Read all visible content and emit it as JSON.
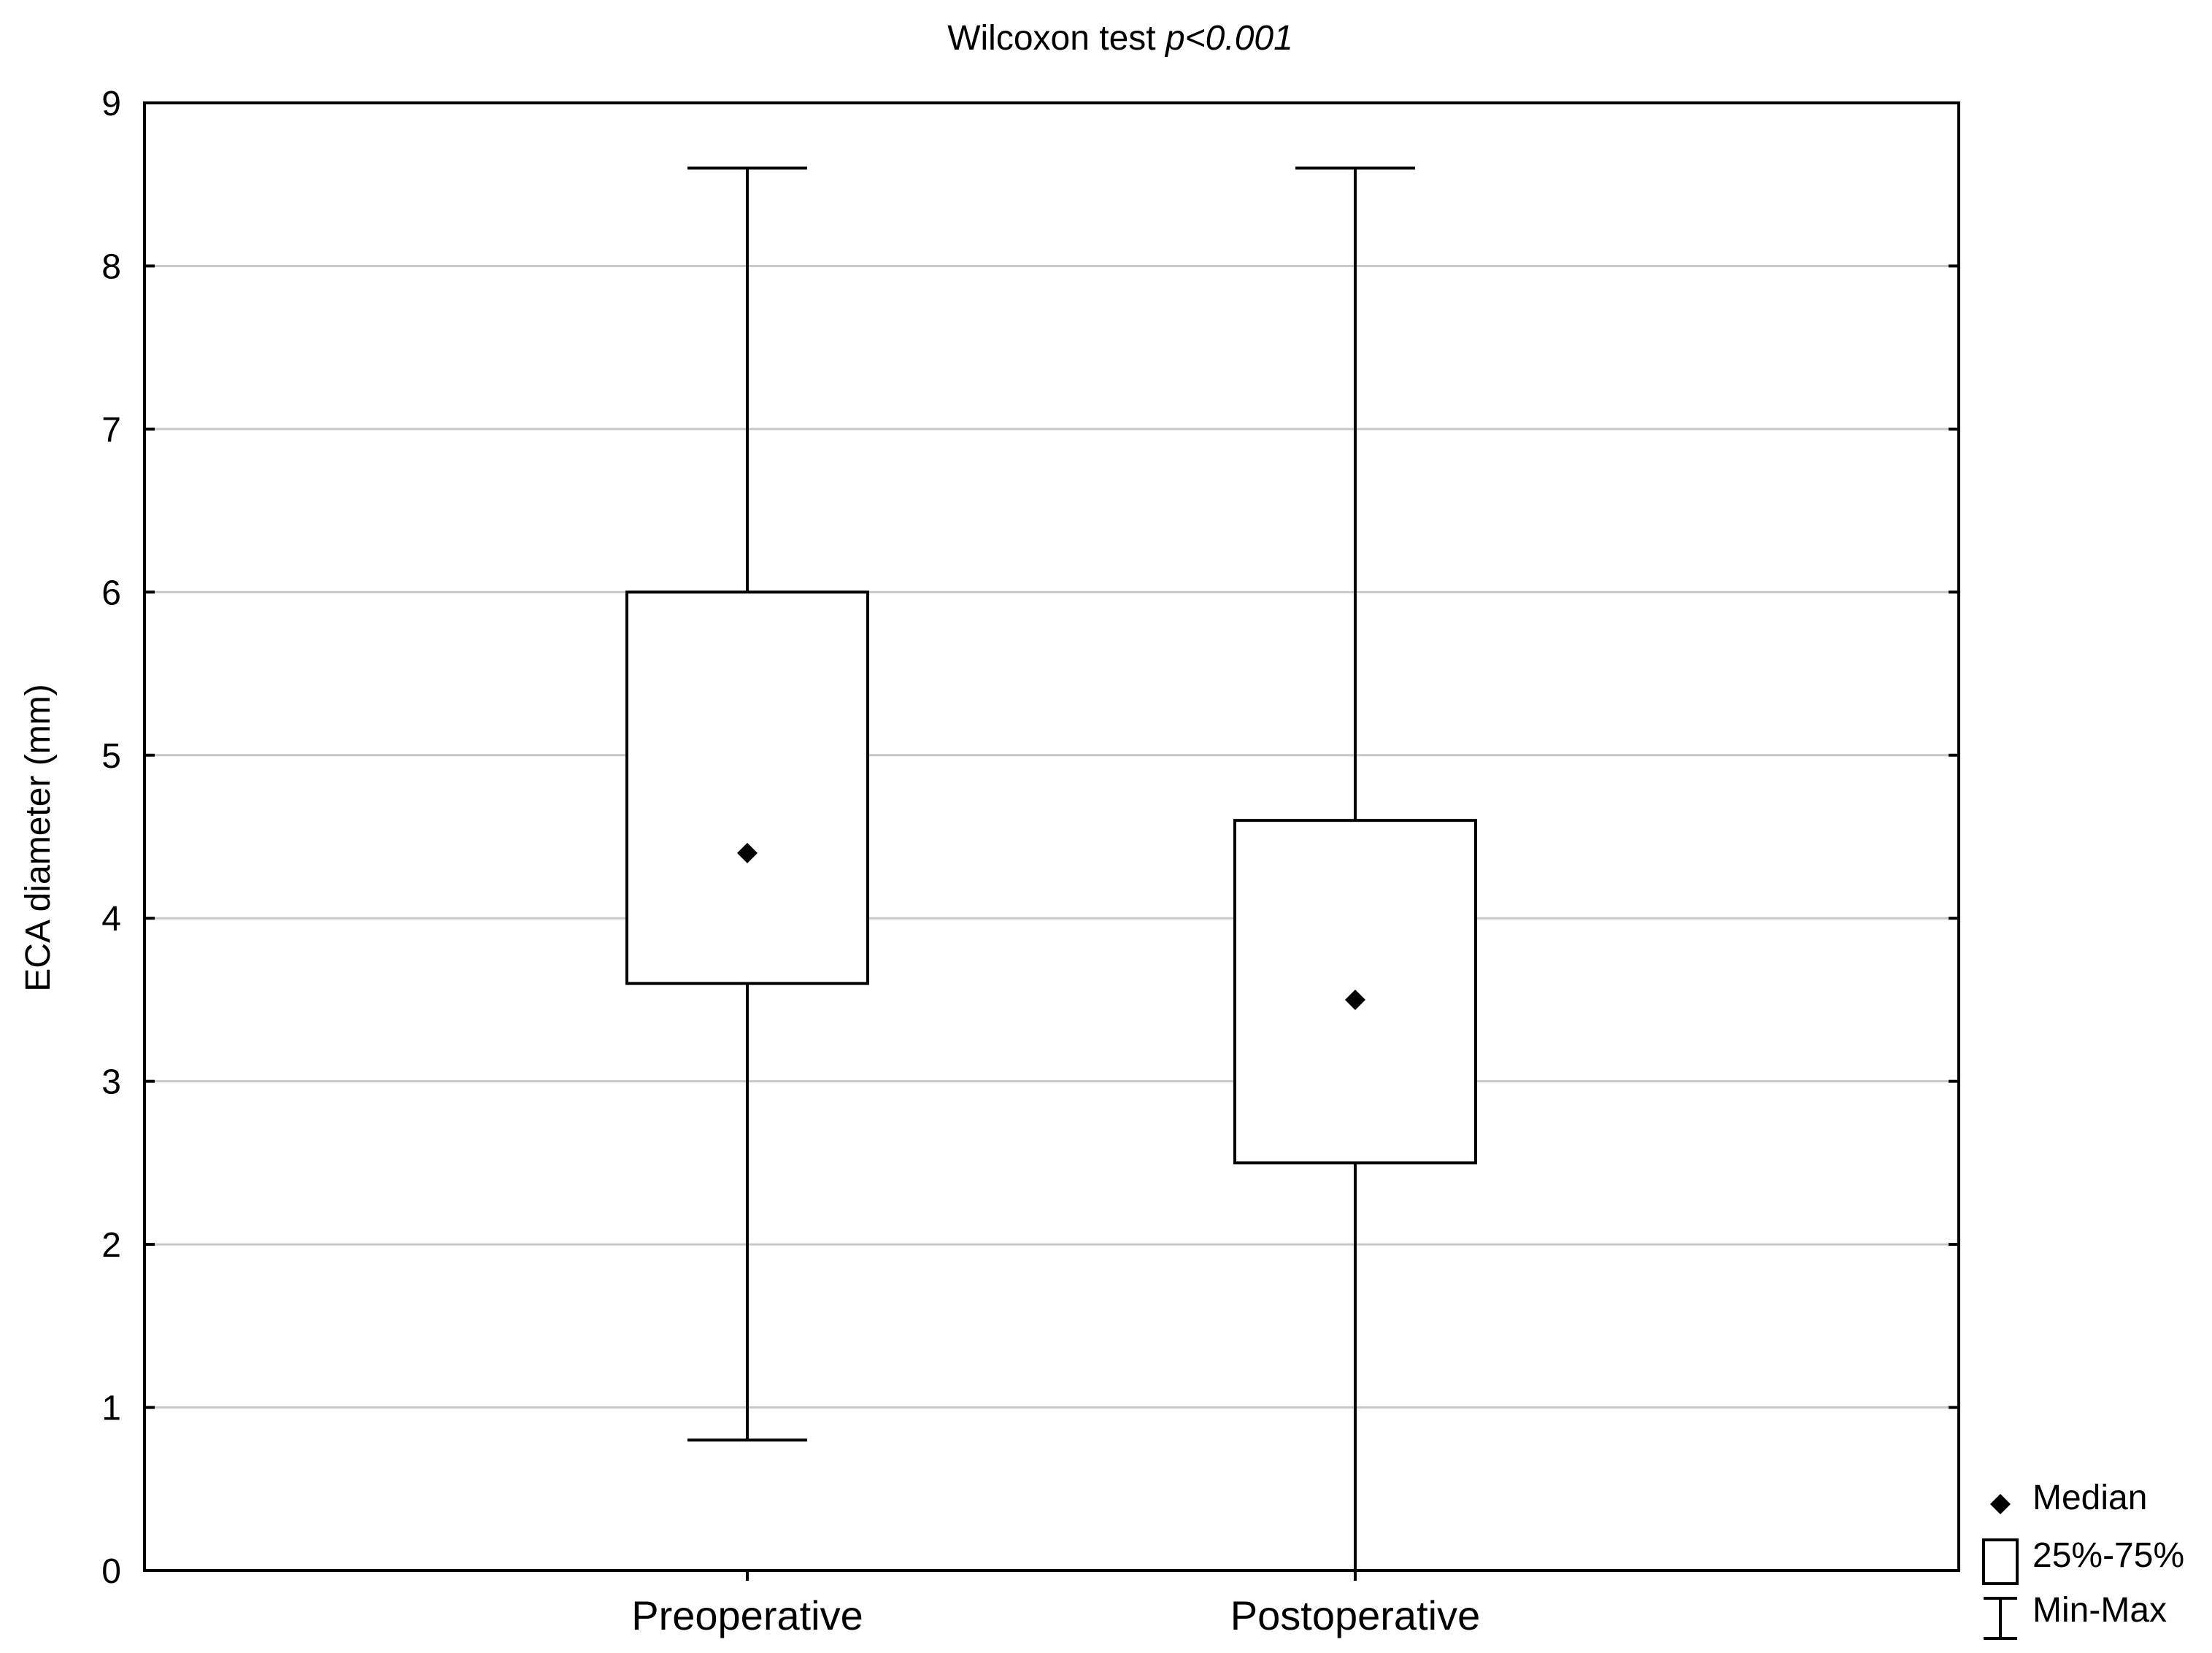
{
  "chart_data": {
    "type": "box",
    "title": "Wilcoxon test",
    "title_italic": "p<0.001",
    "xlabel": "",
    "ylabel": "ECA diameter (mm)",
    "ylim": [
      0,
      9
    ],
    "yticks": [
      0,
      1,
      2,
      3,
      4,
      5,
      6,
      7,
      8,
      9
    ],
    "grid": "horizontal",
    "legend_position": "bottom-right",
    "categories": [
      "Preoperative",
      "Postoperative"
    ],
    "boxes": [
      {
        "category": "Preoperative",
        "min": 0.8,
        "q1": 3.6,
        "median": 4.4,
        "q3": 6.0,
        "max": 8.6
      },
      {
        "category": "Postoperative",
        "min": 0.0,
        "q1": 2.5,
        "median": 3.5,
        "q3": 4.6,
        "max": 8.6
      }
    ],
    "legend": {
      "median_label": "Median",
      "box_label": "25%-75%",
      "whisker_label": "Min-Max"
    }
  }
}
